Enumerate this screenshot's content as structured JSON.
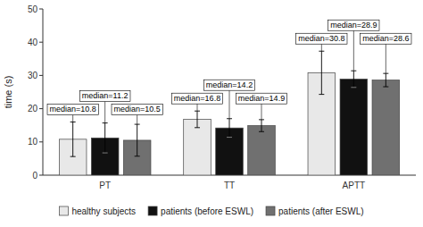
{
  "chart_data": {
    "type": "bar",
    "categories": [
      "PT",
      "TT",
      "APTT"
    ],
    "y_label": "time (s)",
    "series": [
      {
        "name": "healthy subjects",
        "color": "#e8e8e8",
        "values": [
          10.8,
          16.8,
          30.8
        ],
        "errors": [
          5.2,
          2.5,
          6.5
        ],
        "value_labels": [
          "median=10.8",
          "median=16.8",
          "median=30.8"
        ]
      },
      {
        "name": "patients (before ESWL)",
        "color": "#111111",
        "values": [
          11.2,
          14.2,
          28.9
        ],
        "errors": [
          4.5,
          2.8,
          2.5
        ],
        "value_labels": [
          "median=11.2",
          "median=14.2",
          "median=28.9"
        ]
      },
      {
        "name": "patients (after ESWL)",
        "color": "#707070",
        "values": [
          10.5,
          14.9,
          28.6
        ],
        "errors": [
          4.8,
          1.8,
          2.0
        ],
        "value_labels": [
          "median=10.5",
          "median=14.9",
          "median=28.6"
        ]
      }
    ],
    "ylim": [
      0,
      50
    ],
    "yticks": [
      0,
      10,
      20,
      30,
      40,
      50
    ],
    "grid": false,
    "legend": "bottom",
    "data_labels": true
  }
}
